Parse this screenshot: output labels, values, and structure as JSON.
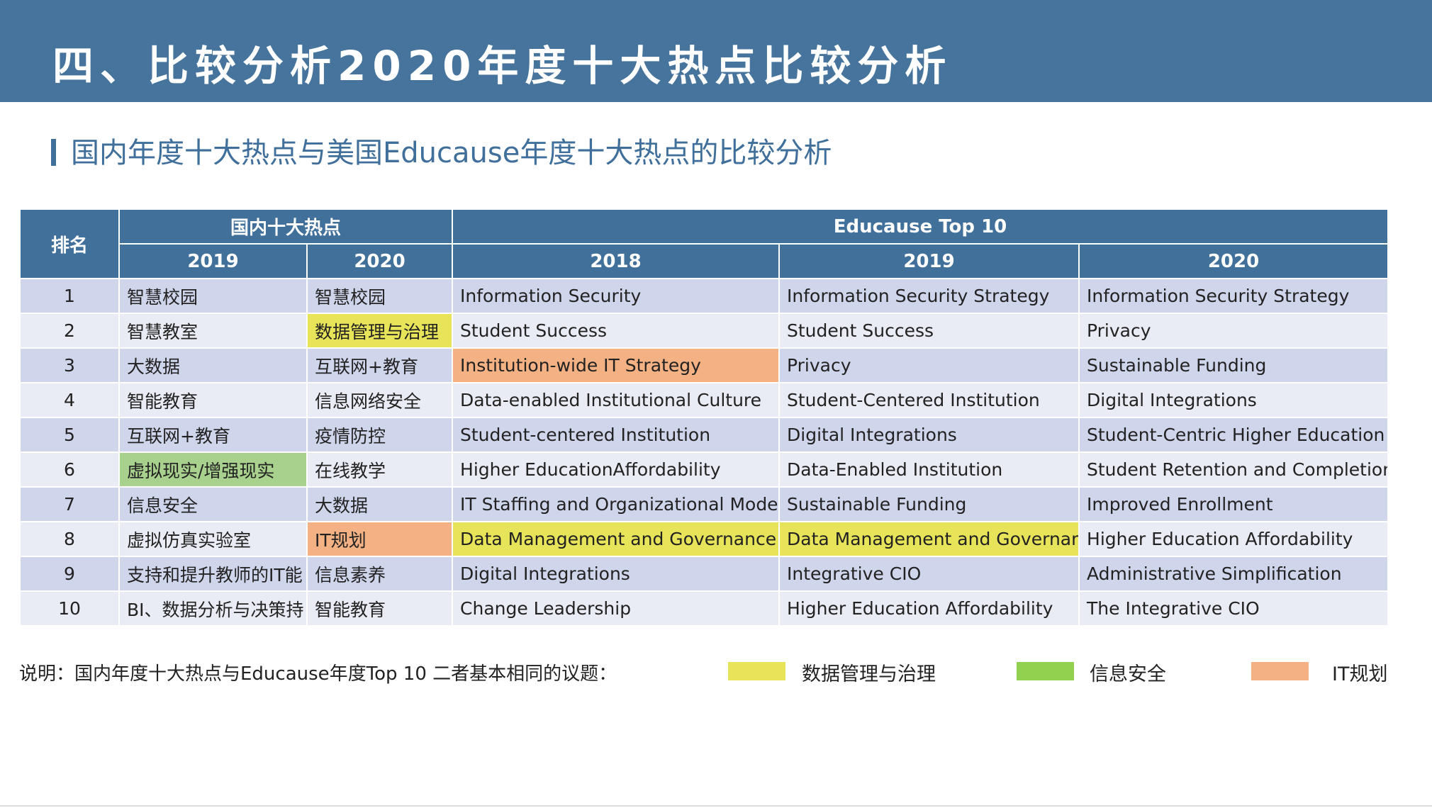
{
  "header": {
    "title": "四、比较分析2020年度十大热点比较分析"
  },
  "subtitle": "国内年度十大热点与美国Educause年度十大热点的比较分析",
  "table": {
    "rank_header": "排名",
    "groups": [
      "国内十大热点",
      "Educause Top 10"
    ],
    "years": [
      "2019",
      "2020",
      "2018",
      "2019",
      "2020"
    ],
    "rows": [
      [
        1,
        "智慧校园",
        "智慧校园",
        "Information Security",
        "Information Security Strategy",
        "Information Security Strategy"
      ],
      [
        2,
        "智慧教室",
        {
          "text": "数据管理与治理",
          "color": "#e8e45a"
        },
        "Student Success",
        "Student Success",
        "Privacy"
      ],
      [
        3,
        "大数据",
        "互联网+教育",
        {
          "text": "Institution-wide IT Strategy",
          "color": "#f4b183"
        },
        "Privacy",
        "Sustainable Funding"
      ],
      [
        4,
        "智能教育",
        "信息网络安全",
        "Data-enabled Institutional Culture",
        "Student-Centered Institution",
        "Digital Integrations"
      ],
      [
        5,
        "互联网+教育",
        "疫情防控",
        "Student-centered Institution",
        "Digital Integrations",
        "Student-Centric Higher Education"
      ],
      [
        6,
        {
          "text": "虚拟现实/增强现实",
          "color": "#a9d18e"
        },
        "在线教学",
        "Higher EducationAffordability",
        "Data-Enabled Institution",
        "Student Retention and Completion"
      ],
      [
        7,
        "信息安全",
        "大数据",
        "IT Staffing and Organizational Models",
        "Sustainable Funding",
        "Improved Enrollment"
      ],
      [
        8,
        "虚拟仿真实验室",
        {
          "text": "IT规划",
          "color": "#f4b183"
        },
        {
          "text": "Data Management and Governance",
          "color": "#e8e45a"
        },
        {
          "text": "Data Management and Governance",
          "color": "#e8e45a"
        },
        "Higher Education Affordability"
      ],
      [
        9,
        "支持和提升教师的IT能",
        "信息素养",
        "Digital Integrations",
        "Integrative CIO",
        "Administrative Simplification"
      ],
      [
        10,
        "BI、数据分析与决策持",
        "智能教育",
        "Change Leadership",
        "Higher Education Affordability",
        "The Integrative CIO"
      ]
    ]
  },
  "legend": {
    "note": "说明：国内年度十大热点与Educause年度Top 10 二者基本相同的议题：",
    "items": [
      {
        "label": "数据管理与治理",
        "color": "#e8e45a"
      },
      {
        "label": "信息安全",
        "color": "#92d050"
      },
      {
        "label": "IT规划",
        "color": "#f4b183"
      }
    ]
  }
}
